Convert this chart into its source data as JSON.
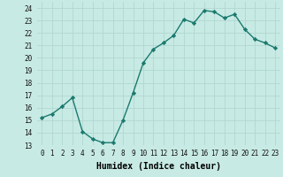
{
  "x": [
    0,
    1,
    2,
    3,
    4,
    5,
    6,
    7,
    8,
    9,
    10,
    11,
    12,
    13,
    14,
    15,
    16,
    17,
    18,
    19,
    20,
    21,
    22,
    23
  ],
  "y": [
    15.2,
    15.5,
    16.1,
    16.8,
    14.1,
    13.5,
    13.2,
    13.2,
    15.0,
    17.2,
    19.6,
    20.7,
    21.2,
    21.8,
    23.1,
    22.8,
    23.8,
    23.7,
    23.2,
    23.5,
    22.3,
    21.5,
    21.2,
    20.8
  ],
  "line_color": "#1a7a6e",
  "marker": "D",
  "marker_size": 2.2,
  "linewidth": 1.0,
  "bg_color": "#c8eae4",
  "grid_color": "#b0d8d0",
  "xlabel": "Humidex (Indice chaleur)",
  "xlim": [
    -0.5,
    23.5
  ],
  "ylim": [
    13,
    24.5
  ],
  "yticks": [
    13,
    14,
    15,
    16,
    17,
    18,
    19,
    20,
    21,
    22,
    23,
    24
  ],
  "xticks": [
    0,
    1,
    2,
    3,
    4,
    5,
    6,
    7,
    8,
    9,
    10,
    11,
    12,
    13,
    14,
    15,
    16,
    17,
    18,
    19,
    20,
    21,
    22,
    23
  ],
  "xlabel_fontsize": 7,
  "tick_fontsize": 5.5
}
